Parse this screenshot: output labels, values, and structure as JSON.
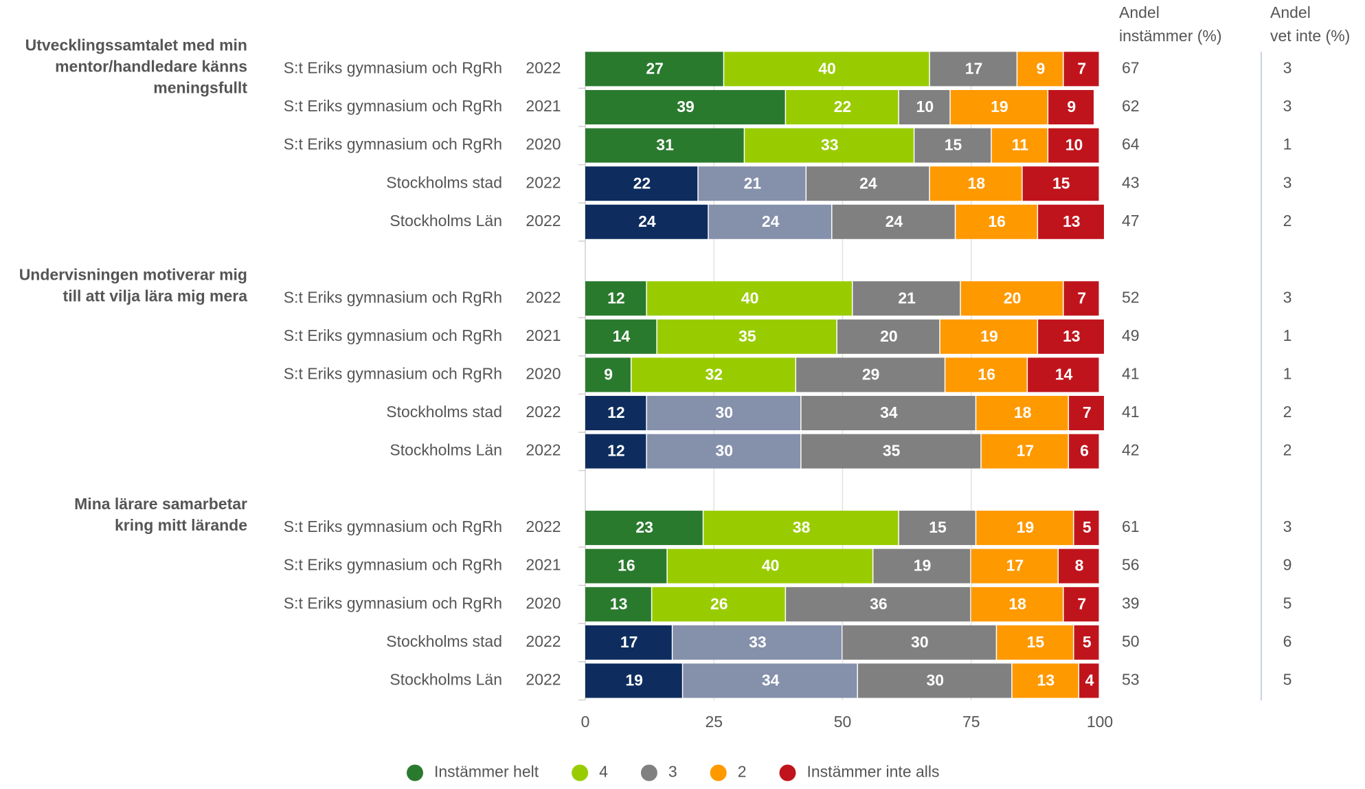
{
  "chart_data": {
    "type": "stacked-bar-horizontal",
    "xlim": [
      0,
      100
    ],
    "xticks": [
      0,
      25,
      50,
      75,
      100
    ],
    "grid": true,
    "columns": [
      [
        "Andel",
        "instämmer (%)"
      ],
      [
        "Andel",
        "vet inte (%)"
      ]
    ],
    "series": [
      {
        "name": "Instämmer helt",
        "color": "#2a7a2e"
      },
      {
        "name": "4",
        "color": "#99cc00"
      },
      {
        "name": "3",
        "color": "#808080"
      },
      {
        "name": "2",
        "color": "#ff9900"
      },
      {
        "name": "Instämmer inte alls",
        "color": "#c0141c"
      }
    ],
    "groups": [
      {
        "title": [
          "Utvecklingssamtalet med min",
          "mentor/handledare känns",
          "meningsfullt"
        ],
        "rows": [
          {
            "label": "S:t Eriks gymnasium och RgRh",
            "year": "2022",
            "values": [
              27,
              40,
              17,
              9,
              7
            ],
            "colors": [
              "#2a7a2e",
              "#99cc00",
              "#808080",
              "#ff9900",
              "#c0141c"
            ],
            "agree": 67,
            "dont_know": 3
          },
          {
            "label": "S:t Eriks gymnasium och RgRh",
            "year": "2021",
            "values": [
              39,
              22,
              10,
              19,
              9
            ],
            "colors": [
              "#2a7a2e",
              "#99cc00",
              "#808080",
              "#ff9900",
              "#c0141c"
            ],
            "agree": 62,
            "dont_know": 3
          },
          {
            "label": "S:t Eriks gymnasium och RgRh",
            "year": "2020",
            "values": [
              31,
              33,
              15,
              11,
              10
            ],
            "colors": [
              "#2a7a2e",
              "#99cc00",
              "#808080",
              "#ff9900",
              "#c0141c"
            ],
            "agree": 64,
            "dont_know": 1
          },
          {
            "label": "Stockholms stad",
            "year": "2022",
            "values": [
              22,
              21,
              24,
              18,
              15
            ],
            "colors": [
              "#0e2d5e",
              "#8590ab",
              "#808080",
              "#ff9900",
              "#c0141c"
            ],
            "agree": 43,
            "dont_know": 3
          },
          {
            "label": "Stockholms Län",
            "year": "2022",
            "values": [
              24,
              24,
              24,
              16,
              13
            ],
            "colors": [
              "#0e2d5e",
              "#8590ab",
              "#808080",
              "#ff9900",
              "#c0141c"
            ],
            "agree": 47,
            "dont_know": 2
          }
        ]
      },
      {
        "title": [
          "Undervisningen motiverar mig",
          "till att vilja lära mig mera"
        ],
        "rows": [
          {
            "label": "S:t Eriks gymnasium och RgRh",
            "year": "2022",
            "values": [
              12,
              40,
              21,
              20,
              7
            ],
            "colors": [
              "#2a7a2e",
              "#99cc00",
              "#808080",
              "#ff9900",
              "#c0141c"
            ],
            "agree": 52,
            "dont_know": 3
          },
          {
            "label": "S:t Eriks gymnasium och RgRh",
            "year": "2021",
            "values": [
              14,
              35,
              20,
              19,
              13
            ],
            "colors": [
              "#2a7a2e",
              "#99cc00",
              "#808080",
              "#ff9900",
              "#c0141c"
            ],
            "agree": 49,
            "dont_know": 1
          },
          {
            "label": "S:t Eriks gymnasium och RgRh",
            "year": "2020",
            "values": [
              9,
              32,
              29,
              16,
              14
            ],
            "colors": [
              "#2a7a2e",
              "#99cc00",
              "#808080",
              "#ff9900",
              "#c0141c"
            ],
            "agree": 41,
            "dont_know": 1
          },
          {
            "label": "Stockholms stad",
            "year": "2022",
            "values": [
              12,
              30,
              34,
              18,
              7
            ],
            "colors": [
              "#0e2d5e",
              "#8590ab",
              "#808080",
              "#ff9900",
              "#c0141c"
            ],
            "agree": 41,
            "dont_know": 2
          },
          {
            "label": "Stockholms Län",
            "year": "2022",
            "values": [
              12,
              30,
              35,
              17,
              6
            ],
            "colors": [
              "#0e2d5e",
              "#8590ab",
              "#808080",
              "#ff9900",
              "#c0141c"
            ],
            "agree": 42,
            "dont_know": 2
          }
        ]
      },
      {
        "title": [
          "Mina lärare samarbetar",
          "kring mitt lärande"
        ],
        "rows": [
          {
            "label": "S:t Eriks gymnasium och RgRh",
            "year": "2022",
            "values": [
              23,
              38,
              15,
              19,
              5
            ],
            "colors": [
              "#2a7a2e",
              "#99cc00",
              "#808080",
              "#ff9900",
              "#c0141c"
            ],
            "agree": 61,
            "dont_know": 3
          },
          {
            "label": "S:t Eriks gymnasium och RgRh",
            "year": "2021",
            "values": [
              16,
              40,
              19,
              17,
              8
            ],
            "colors": [
              "#2a7a2e",
              "#99cc00",
              "#808080",
              "#ff9900",
              "#c0141c"
            ],
            "agree": 56,
            "dont_know": 9
          },
          {
            "label": "S:t Eriks gymnasium och RgRh",
            "year": "2020",
            "values": [
              13,
              26,
              36,
              18,
              7
            ],
            "colors": [
              "#2a7a2e",
              "#99cc00",
              "#808080",
              "#ff9900",
              "#c0141c"
            ],
            "agree": 39,
            "dont_know": 5
          },
          {
            "label": "Stockholms stad",
            "year": "2022",
            "values": [
              17,
              33,
              30,
              15,
              5
            ],
            "colors": [
              "#0e2d5e",
              "#8590ab",
              "#808080",
              "#ff9900",
              "#c0141c"
            ],
            "agree": 50,
            "dont_know": 6
          },
          {
            "label": "Stockholms Län",
            "year": "2022",
            "values": [
              19,
              34,
              30,
              13,
              4
            ],
            "colors": [
              "#0e2d5e",
              "#8590ab",
              "#808080",
              "#ff9900",
              "#c0141c"
            ],
            "agree": 53,
            "dont_know": 5
          }
        ]
      }
    ]
  }
}
